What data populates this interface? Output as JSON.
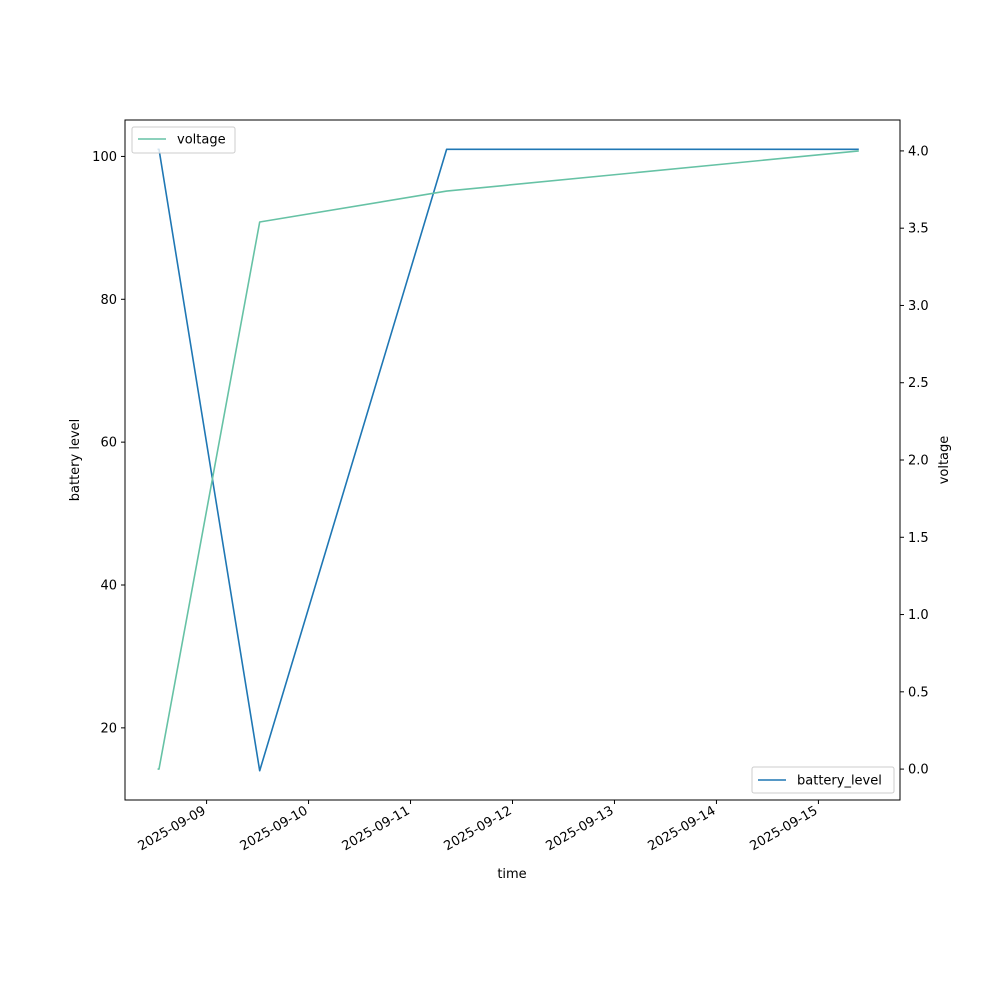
{
  "chart_data": {
    "type": "line",
    "xlabel": "time",
    "ylabel_left": "battery level",
    "ylabel_right": "voltage",
    "x_axis": {
      "kind": "date",
      "range": [
        "2025-09-08T04:48",
        "2025-09-15T19:12"
      ],
      "ticks": [
        "2025-09-09",
        "2025-09-10",
        "2025-09-11",
        "2025-09-12",
        "2025-09-13",
        "2025-09-14",
        "2025-09-15"
      ]
    },
    "y_left": {
      "range": [
        9.9,
        105.1
      ],
      "ticks": [
        20,
        40,
        60,
        80,
        100
      ]
    },
    "y_right": {
      "range": [
        -0.2,
        4.2
      ],
      "ticks": [
        0.0,
        0.5,
        1.0,
        1.5,
        2.0,
        2.5,
        3.0,
        3.5,
        4.0
      ],
      "tick_labels": [
        "0.0",
        "0.5",
        "1.0",
        "1.5",
        "2.0",
        "2.5",
        "3.0",
        "3.5",
        "4.0"
      ]
    },
    "grid": false,
    "series": [
      {
        "name": "battery_level",
        "axis": "left",
        "color": "#1f77b4",
        "x": [
          "2025-09-08T12:28",
          "2025-09-08T12:48",
          "2025-09-09T12:30",
          "2025-09-11T08:30",
          "2025-09-15T09:30"
        ],
        "y": [
          101,
          101,
          14,
          101,
          101
        ]
      },
      {
        "name": "voltage",
        "axis": "right",
        "color": "#66c2a5",
        "x": [
          "2025-09-08T12:28",
          "2025-09-08T12:48",
          "2025-09-09T12:30",
          "2025-09-11T08:30",
          "2025-09-15T09:30"
        ],
        "y": [
          0.0,
          0.0,
          3.54,
          3.74,
          4.0
        ]
      }
    ],
    "legends": [
      {
        "series": "voltage",
        "placement": "upper left"
      },
      {
        "series": "battery_level",
        "placement": "lower right"
      }
    ]
  }
}
